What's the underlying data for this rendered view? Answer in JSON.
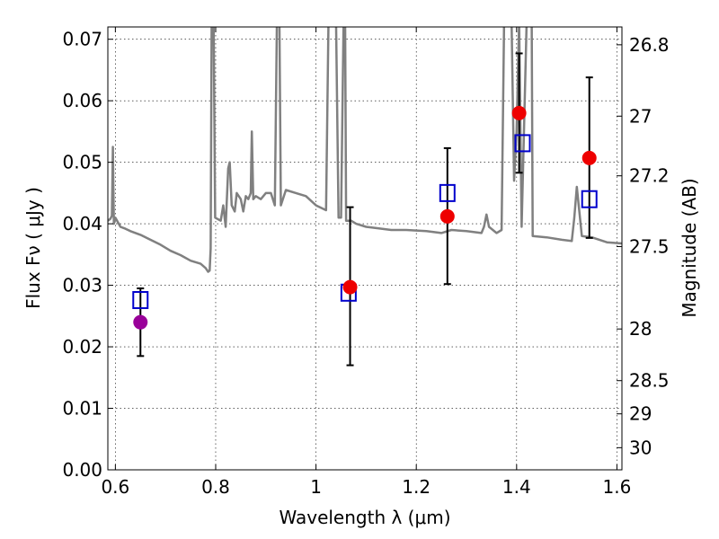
{
  "chart_data": {
    "type": "scatter",
    "xlabel": "Wavelength  λ (μm)",
    "ylabel": "Flux  Fν  ( μJy )",
    "ylabel_right": "Magnitude (AB)",
    "xlim": [
      0.585,
      1.61
    ],
    "ylim": [
      0.0,
      0.072
    ],
    "grid": true,
    "x_ticks": [
      {
        "value": 0.6,
        "label": "0.6"
      },
      {
        "value": 0.8,
        "label": "0.8"
      },
      {
        "value": 1.0,
        "label": "1"
      },
      {
        "value": 1.2,
        "label": "1.2"
      },
      {
        "value": 1.4,
        "label": "1.4"
      },
      {
        "value": 1.6,
        "label": "1.6"
      }
    ],
    "y_ticks": [
      {
        "value": 0.0,
        "label": "0.00"
      },
      {
        "value": 0.01,
        "label": "0.01"
      },
      {
        "value": 0.02,
        "label": "0.02"
      },
      {
        "value": 0.03,
        "label": "0.03"
      },
      {
        "value": 0.04,
        "label": "0.04"
      },
      {
        "value": 0.05,
        "label": "0.05"
      },
      {
        "value": 0.06,
        "label": "0.06"
      },
      {
        "value": 0.07,
        "label": "0.07"
      }
    ],
    "right_ticks": [
      {
        "flux": 0.0691,
        "label": "26.8"
      },
      {
        "flux": 0.0575,
        "label": "27"
      },
      {
        "flux": 0.0478,
        "label": "27.2"
      },
      {
        "flux": 0.0363,
        "label": "27.5"
      },
      {
        "flux": 0.0229,
        "label": "28"
      },
      {
        "flux": 0.0145,
        "label": "28.5"
      },
      {
        "flux": 0.0091,
        "label": "29"
      },
      {
        "flux": 0.0036,
        "label": "30"
      }
    ],
    "series": [
      {
        "kind": "model_spectrum",
        "color": "#808080",
        "points": [
          [
            0.585,
            0.0405
          ],
          [
            0.59,
            0.0408
          ],
          [
            0.593,
            0.0413
          ],
          [
            0.595,
            0.0525
          ],
          [
            0.597,
            0.04
          ],
          [
            0.6,
            0.041
          ],
          [
            0.61,
            0.0395
          ],
          [
            0.62,
            0.0392
          ],
          [
            0.63,
            0.0388
          ],
          [
            0.65,
            0.0382
          ],
          [
            0.67,
            0.0374
          ],
          [
            0.69,
            0.0366
          ],
          [
            0.71,
            0.0356
          ],
          [
            0.73,
            0.0349
          ],
          [
            0.75,
            0.034
          ],
          [
            0.77,
            0.0335
          ],
          [
            0.78,
            0.0328
          ],
          [
            0.785,
            0.0322
          ],
          [
            0.788,
            0.0324
          ],
          [
            0.79,
            0.036
          ],
          [
            0.792,
            0.073
          ],
          [
            0.796,
            0.073
          ],
          [
            0.799,
            0.041
          ],
          [
            0.81,
            0.0405
          ],
          [
            0.815,
            0.043
          ],
          [
            0.82,
            0.0395
          ],
          [
            0.825,
            0.049
          ],
          [
            0.828,
            0.05
          ],
          [
            0.832,
            0.043
          ],
          [
            0.838,
            0.042
          ],
          [
            0.842,
            0.045
          ],
          [
            0.85,
            0.044
          ],
          [
            0.855,
            0.042
          ],
          [
            0.86,
            0.0445
          ],
          [
            0.865,
            0.044
          ],
          [
            0.87,
            0.045
          ],
          [
            0.872,
            0.055
          ],
          [
            0.875,
            0.044
          ],
          [
            0.88,
            0.0445
          ],
          [
            0.89,
            0.044
          ],
          [
            0.9,
            0.045
          ],
          [
            0.91,
            0.045
          ],
          [
            0.918,
            0.043
          ],
          [
            0.922,
            0.073
          ],
          [
            0.927,
            0.073
          ],
          [
            0.93,
            0.043
          ],
          [
            0.94,
            0.0455
          ],
          [
            0.96,
            0.045
          ],
          [
            0.98,
            0.0445
          ],
          [
            1.0,
            0.043
          ],
          [
            1.02,
            0.0422
          ],
          [
            1.025,
            0.073
          ],
          [
            1.04,
            0.073
          ],
          [
            1.045,
            0.041
          ],
          [
            1.05,
            0.041
          ],
          [
            1.055,
            0.073
          ],
          [
            1.058,
            0.073
          ],
          [
            1.06,
            0.0405
          ],
          [
            1.07,
            0.0405
          ],
          [
            1.08,
            0.04
          ],
          [
            1.1,
            0.0395
          ],
          [
            1.12,
            0.0393
          ],
          [
            1.15,
            0.039
          ],
          [
            1.18,
            0.039
          ],
          [
            1.22,
            0.0388
          ],
          [
            1.25,
            0.0385
          ],
          [
            1.27,
            0.039
          ],
          [
            1.3,
            0.0388
          ],
          [
            1.33,
            0.0385
          ],
          [
            1.335,
            0.0395
          ],
          [
            1.34,
            0.0415
          ],
          [
            1.345,
            0.0395
          ],
          [
            1.36,
            0.0385
          ],
          [
            1.37,
            0.039
          ],
          [
            1.375,
            0.073
          ],
          [
            1.39,
            0.073
          ],
          [
            1.395,
            0.047
          ],
          [
            1.4,
            0.055
          ],
          [
            1.405,
            0.073
          ],
          [
            1.41,
            0.0395
          ],
          [
            1.42,
            0.073
          ],
          [
            1.43,
            0.073
          ],
          [
            1.432,
            0.038
          ],
          [
            1.46,
            0.0378
          ],
          [
            1.49,
            0.0374
          ],
          [
            1.51,
            0.0372
          ],
          [
            1.515,
            0.041
          ],
          [
            1.52,
            0.046
          ],
          [
            1.525,
            0.042
          ],
          [
            1.53,
            0.038
          ],
          [
            1.55,
            0.0378
          ],
          [
            1.58,
            0.037
          ],
          [
            1.61,
            0.0368
          ]
        ]
      },
      {
        "kind": "model_photometry",
        "marker": "open-square",
        "color": "#0000cc",
        "points": [
          {
            "x": 0.65,
            "y": 0.0276
          },
          {
            "x": 1.065,
            "y": 0.0288
          },
          {
            "x": 1.262,
            "y": 0.045
          },
          {
            "x": 1.412,
            "y": 0.0531
          },
          {
            "x": 1.545,
            "y": 0.044
          }
        ]
      },
      {
        "kind": "observed_photometry",
        "marker": "filled-circle",
        "points": [
          {
            "x": 0.65,
            "y": 0.024,
            "err_low": 0.0185,
            "err_high": 0.0295,
            "color": "#990099"
          },
          {
            "x": 1.068,
            "y": 0.0297,
            "err_low": 0.017,
            "err_high": 0.0427,
            "color": "#ee0000"
          },
          {
            "x": 1.262,
            "y": 0.0412,
            "err_low": 0.0302,
            "err_high": 0.0523,
            "color": "#ee0000"
          },
          {
            "x": 1.405,
            "y": 0.058,
            "err_low": 0.0483,
            "err_high": 0.0677,
            "color": "#ee0000"
          },
          {
            "x": 1.545,
            "y": 0.0507,
            "err_low": 0.0377,
            "err_high": 0.0638,
            "color": "#ee0000"
          }
        ]
      }
    ]
  }
}
